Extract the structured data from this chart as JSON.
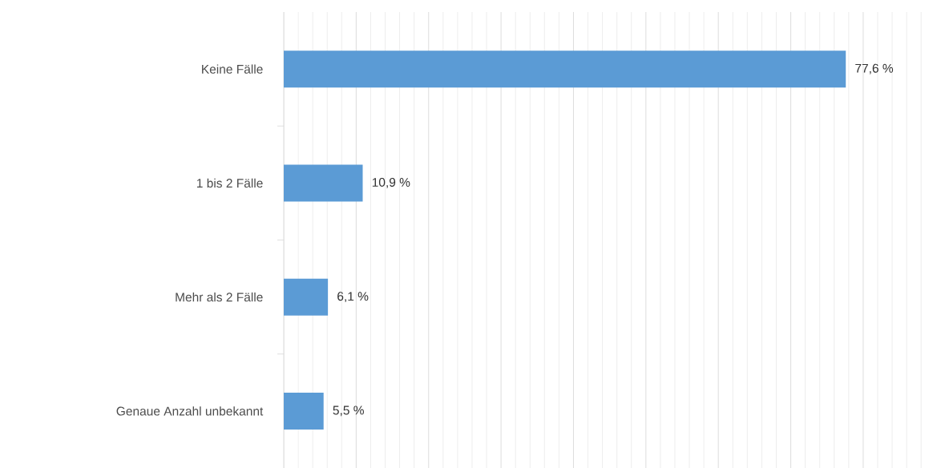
{
  "chart_data": {
    "type": "bar",
    "orientation": "horizontal",
    "categories": [
      "Keine Fälle",
      "1 bis 2 Fälle",
      "Mehr als 2 Fälle",
      "Genaue Anzahl unbekannt"
    ],
    "values": [
      77.6,
      10.9,
      6.1,
      5.5
    ],
    "value_labels": [
      "77,6 %",
      "10,9 %",
      "6,1 %",
      "5,5 %"
    ],
    "color": "#5b9bd5",
    "grid": "x",
    "tick_labels": "y"
  }
}
